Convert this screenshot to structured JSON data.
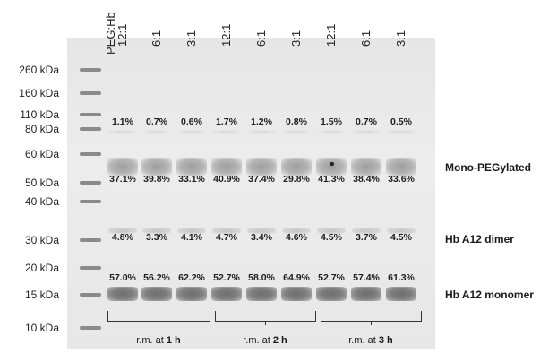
{
  "header_label": "PEG:Hb",
  "ladder": [
    "260 kDa",
    "160 kDa",
    "110 kDa",
    "80 kDa",
    "60 kDa",
    "50 kDa",
    "40 kDa",
    "30 kDa",
    "20 kDa",
    "15 kDa",
    "10 kDa"
  ],
  "lanes": [
    {
      "ratio": "12:1",
      "top": "1.1%",
      "mono": "37.1%",
      "dimer": "4.8%",
      "monomer": "57.0%"
    },
    {
      "ratio": "6:1",
      "top": "0.7%",
      "mono": "39.8%",
      "dimer": "3.3%",
      "monomer": "56.2%"
    },
    {
      "ratio": "3:1",
      "top": "0.6%",
      "mono": "33.1%",
      "dimer": "4.1%",
      "monomer": "62.2%"
    },
    {
      "ratio": "12:1",
      "top": "1.7%",
      "mono": "40.9%",
      "dimer": "4.7%",
      "monomer": "52.7%"
    },
    {
      "ratio": "6:1",
      "top": "1.2%",
      "mono": "37.4%",
      "dimer": "3.4%",
      "monomer": "58.0%"
    },
    {
      "ratio": "3:1",
      "top": "0.8%",
      "mono": "29.8%",
      "dimer": "4.6%",
      "monomer": "64.9%"
    },
    {
      "ratio": "12:1",
      "top": "1.5%",
      "mono": "41.3%",
      "dimer": "4.5%",
      "monomer": "52.7%"
    },
    {
      "ratio": "6:1",
      "top": "0.7%",
      "mono": "38.4%",
      "dimer": "3.7%",
      "monomer": "57.4%"
    },
    {
      "ratio": "3:1",
      "top": "0.5%",
      "mono": "33.6%",
      "dimer": "4.5%",
      "monomer": "61.3%"
    }
  ],
  "species_labels": {
    "mono": "Mono-PEGylated",
    "dimer": "Hb A12 dimer",
    "monomer": "Hb A12 monomer"
  },
  "groups": [
    {
      "prefix": "r.m. at ",
      "time": "1 h"
    },
    {
      "prefix": "r.m. at ",
      "time": "2 h"
    },
    {
      "prefix": "r.m. at ",
      "time": "3 h"
    }
  ]
}
